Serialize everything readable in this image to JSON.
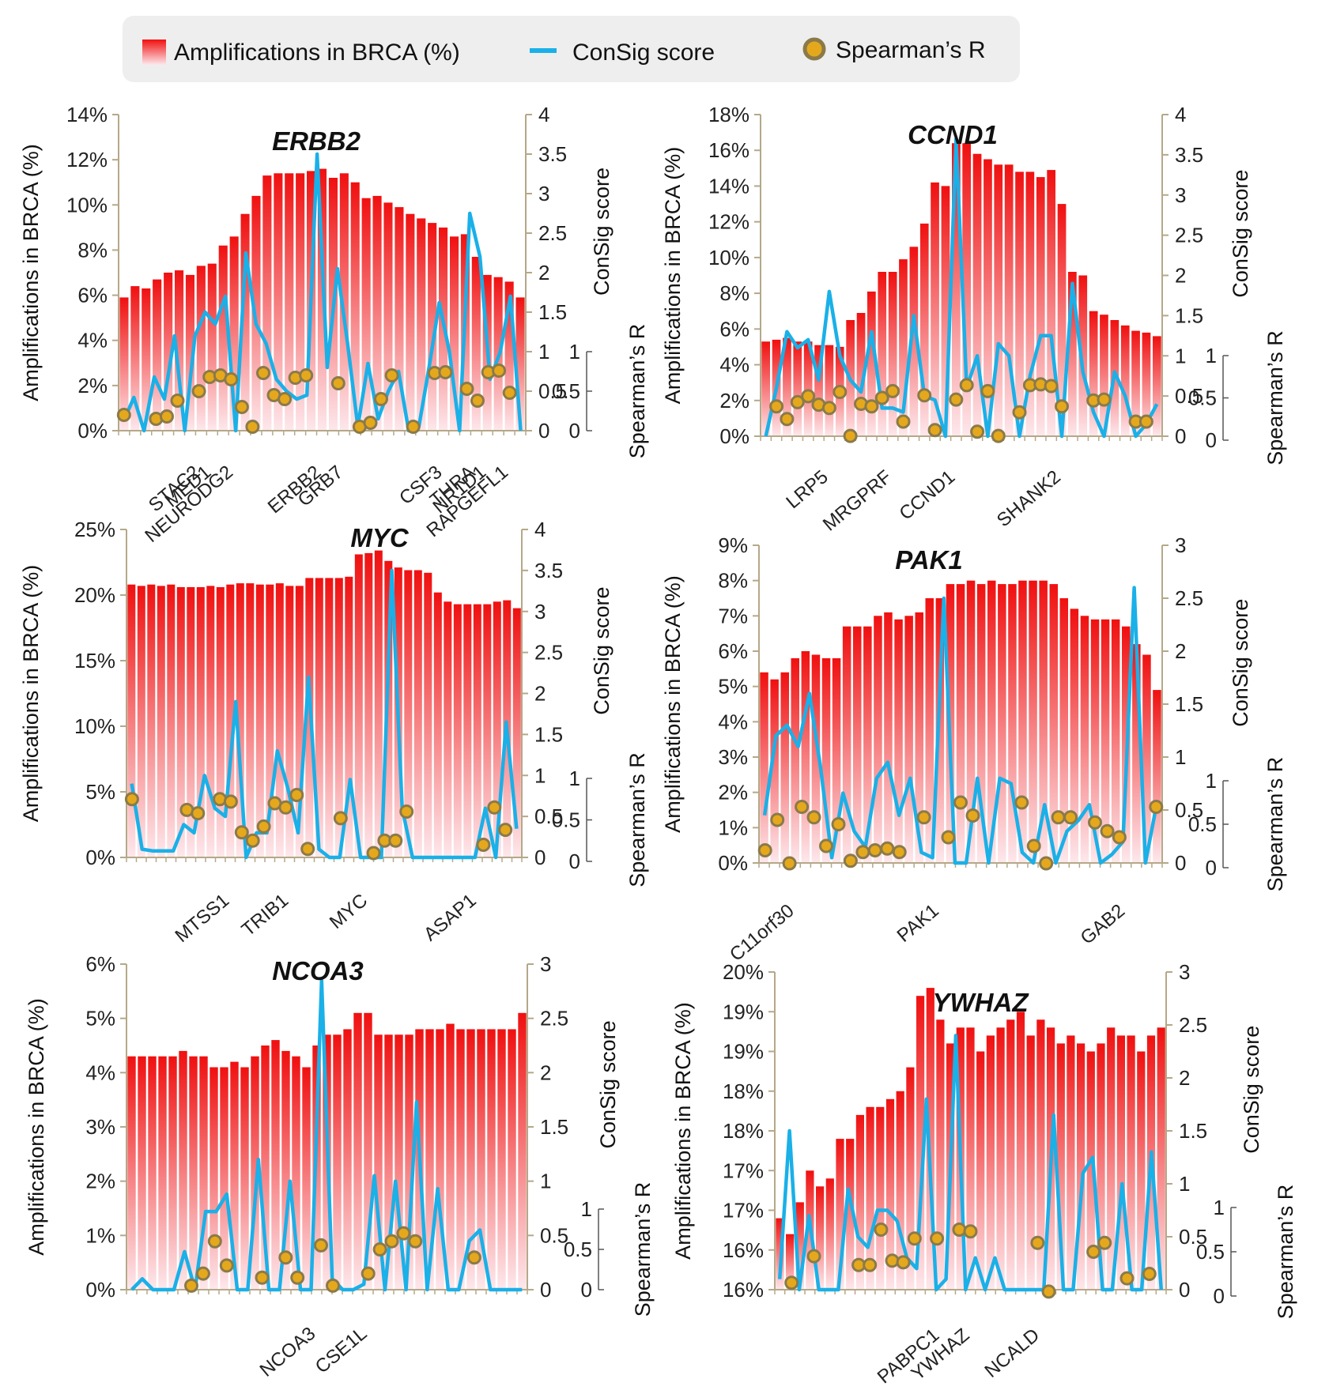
{
  "legend": {
    "amplifications_label": "Amplifications in BRCA (%)",
    "consig_label": "ConSig score",
    "spearman_label": "Spearman’s R",
    "bar_color_top": "#f01010",
    "bar_color_bottom": "#fde8ec",
    "line_color": "#1ab0e8",
    "dot_fill": "#e5a81c",
    "dot_stroke": "#8a7a4a",
    "axis_color": "#b5a888",
    "background": "#eeeeee"
  },
  "chart_data": [
    {
      "type": "bar",
      "title": "ERBB2",
      "ylabel": "Amplifications in BRCA (%)",
      "y2label": "ConSig score",
      "y3label": "Spearman’s R",
      "ylim": [
        0,
        14
      ],
      "yticks": [
        0,
        2,
        4,
        6,
        8,
        10,
        12,
        14
      ],
      "ytick_labels": [
        "0%",
        "2%",
        "4%",
        "6%",
        "8%",
        "10%",
        "12%",
        "14%"
      ],
      "y2lim": [
        0,
        4
      ],
      "y2ticks": [
        0,
        0.5,
        1,
        1.5,
        2,
        2.5,
        3,
        3.5,
        4
      ],
      "y2tick_labels": [
        "0",
        "0.5",
        "1",
        "1.5",
        "2",
        "2.5",
        "3",
        "3.5",
        "4"
      ],
      "y3lim": [
        0,
        1
      ],
      "y3ticks": [
        0,
        0.5,
        1
      ],
      "y3tick_labels": [
        "0",
        "0.5",
        "1"
      ],
      "gene_labels": [
        {
          "label": "STAC2",
          "index": 7
        },
        {
          "label": "MED1",
          "index": 8
        },
        {
          "label": "NEURODG2",
          "index": 10
        },
        {
          "label": "ERBB2",
          "index": 18
        },
        {
          "label": "GRB7",
          "index": 20
        },
        {
          "label": "CSF3",
          "index": 29
        },
        {
          "label": "THRA",
          "index": 32
        },
        {
          "label": "NR1D1",
          "index": 33
        },
        {
          "label": "RAPGEFL1",
          "index": 35
        }
      ],
      "bars": [
        5.9,
        6.4,
        6.3,
        6.7,
        7.0,
        7.1,
        6.9,
        7.3,
        7.4,
        8.2,
        8.6,
        9.6,
        10.4,
        11.3,
        11.4,
        11.4,
        11.4,
        11.5,
        11.6,
        11.2,
        11.4,
        11.0,
        10.3,
        10.4,
        10.1,
        9.9,
        9.6,
        9.4,
        9.2,
        9.0,
        8.6,
        8.7,
        7.7,
        6.9,
        6.8,
        6.6,
        5.9
      ],
      "consig": [
        0.12,
        0.42,
        0.0,
        0.68,
        0.4,
        1.2,
        0.0,
        1.2,
        1.5,
        1.35,
        1.7,
        0.0,
        2.25,
        1.35,
        1.1,
        0.65,
        0.5,
        0.4,
        0.45,
        3.5,
        0.8,
        2.05,
        1.1,
        0.05,
        0.85,
        0.15,
        0.5,
        0.75,
        0.0,
        0.05,
        0.8,
        1.62,
        1.0,
        0.0,
        2.75,
        2.2,
        0.65,
        1.0,
        1.7,
        0.0
      ],
      "spearman": [
        0.2,
        null,
        null,
        0.15,
        0.18,
        0.38,
        null,
        0.5,
        0.68,
        0.7,
        0.65,
        0.3,
        0.05,
        0.73,
        0.45,
        0.4,
        0.67,
        0.7,
        null,
        null,
        0.6,
        null,
        0.05,
        0.1,
        0.4,
        0.7,
        null,
        0.05,
        null,
        0.73,
        0.74,
        null,
        0.53,
        0.38,
        0.74,
        0.76,
        0.48,
        null
      ]
    },
    {
      "type": "bar",
      "title": "CCND1",
      "ylabel": "Amplifications in BRCA (%)",
      "y2label": "ConSig score",
      "y3label": "Spearman’s R",
      "ylim": [
        0,
        18
      ],
      "yticks": [
        0,
        2,
        4,
        6,
        8,
        10,
        12,
        14,
        16,
        18
      ],
      "ytick_labels": [
        "0%",
        "2%",
        "4%",
        "6%",
        "8%",
        "10%",
        "12%",
        "14%",
        "16%",
        "18%"
      ],
      "y2lim": [
        0,
        4
      ],
      "y2ticks": [
        0,
        0.5,
        1,
        1.5,
        2,
        2.5,
        3,
        3.5,
        4
      ],
      "y2tick_labels": [
        "0",
        "0.5",
        "1",
        "1.5",
        "2",
        "2.5",
        "3",
        "3.5",
        "4"
      ],
      "y3lim": [
        0,
        1
      ],
      "y3ticks": [
        0,
        0.5,
        1
      ],
      "y3tick_labels": [
        "0",
        "0.5",
        "1"
      ],
      "gene_labels": [
        {
          "label": "LRP5",
          "index": 6
        },
        {
          "label": "MRGPRF",
          "index": 12
        },
        {
          "label": "CCND1",
          "index": 18
        },
        {
          "label": "SHANK2",
          "index": 28
        }
      ],
      "bars": [
        5.3,
        5.4,
        5.5,
        5.3,
        5.3,
        5.1,
        5.1,
        5.0,
        6.5,
        6.9,
        8.1,
        9.2,
        9.2,
        9.9,
        10.6,
        11.9,
        14.2,
        14.0,
        16.4,
        16.4,
        15.8,
        15.5,
        15.2,
        15.2,
        14.8,
        14.8,
        14.5,
        14.9,
        13.0,
        9.2,
        9.0,
        7.0,
        6.8,
        6.5,
        6.2,
        5.9,
        5.8,
        5.6
      ],
      "consig": [
        0.0,
        0.6,
        1.3,
        1.1,
        1.2,
        0.7,
        1.8,
        1.0,
        0.7,
        0.55,
        1.3,
        0.35,
        0.35,
        0.3,
        1.5,
        0.5,
        0.45,
        0.0,
        3.7,
        0.6,
        1.0,
        0.0,
        1.15,
        1.0,
        0.0,
        0.75,
        1.25,
        1.25,
        0.0,
        1.9,
        0.8,
        0.3,
        0.0,
        0.8,
        0.5,
        0.0,
        0.15,
        0.4
      ],
      "spearman": [
        null,
        0.4,
        0.25,
        0.45,
        0.52,
        0.42,
        0.38,
        0.57,
        0.05,
        0.43,
        0.4,
        0.5,
        0.58,
        0.22,
        null,
        0.53,
        0.12,
        null,
        0.48,
        0.65,
        0.1,
        0.58,
        0.05,
        null,
        0.33,
        0.65,
        0.66,
        0.64,
        0.4,
        null,
        null,
        0.47,
        0.48,
        null,
        null,
        0.22,
        0.22,
        null
      ]
    },
    {
      "type": "bar",
      "title": "MYC",
      "ylabel": "Amplifications in BRCA (%)",
      "y2label": "ConSig score",
      "y3label": "Spearman’s R",
      "ylim": [
        0,
        25
      ],
      "yticks": [
        0,
        5,
        10,
        15,
        20,
        25
      ],
      "ytick_labels": [
        "0%",
        "5%",
        "10%",
        "15%",
        "20%",
        "25%"
      ],
      "y2lim": [
        0,
        4
      ],
      "y2ticks": [
        0,
        0.5,
        1,
        1.5,
        2,
        2.5,
        3,
        3.5,
        4
      ],
      "y2tick_labels": [
        "0",
        "0.5",
        "1",
        "1.5",
        "2",
        "2.5",
        "3",
        "3.5",
        "4"
      ],
      "y3lim": [
        0,
        1
      ],
      "y3ticks": [
        0,
        0.5,
        1
      ],
      "y3tick_labels": [
        "0",
        "0.5",
        "1"
      ],
      "gene_labels": [
        {
          "label": "MTSS1",
          "index": 10
        },
        {
          "label": "TRIB1",
          "index": 16
        },
        {
          "label": "MYC",
          "index": 24
        },
        {
          "label": "ASAP1",
          "index": 35
        }
      ],
      "bars": [
        20.8,
        20.7,
        20.8,
        20.7,
        20.8,
        20.6,
        20.6,
        20.6,
        20.7,
        20.6,
        20.8,
        20.9,
        20.9,
        20.8,
        20.8,
        20.9,
        20.7,
        20.7,
        21.3,
        21.3,
        21.3,
        21.3,
        21.4,
        23.1,
        23.2,
        23.4,
        22.6,
        22.1,
        21.9,
        21.9,
        21.7,
        20.2,
        19.5,
        19.3,
        19.3,
        19.3,
        19.3,
        19.5,
        19.6,
        19.0
      ],
      "consig": [
        0.9,
        0.1,
        0.08,
        0.08,
        0.08,
        0.4,
        0.3,
        1.0,
        0.6,
        0.5,
        1.9,
        0.0,
        0.3,
        0.3,
        1.3,
        0.85,
        0.3,
        2.2,
        0.1,
        0.0,
        0.0,
        0.95,
        0.0,
        0.0,
        0.0,
        3.5,
        0.6,
        0.0,
        0.0,
        0.0,
        0.0,
        0.0,
        0.0,
        0.0,
        0.6,
        0.0,
        1.65,
        0.35
      ],
      "spearman": [
        0.75,
        null,
        null,
        null,
        null,
        0.62,
        0.58,
        null,
        0.75,
        0.72,
        0.35,
        0.25,
        0.42,
        0.7,
        0.65,
        0.8,
        0.15,
        null,
        null,
        0.52,
        null,
        null,
        0.1,
        0.25,
        0.25,
        0.6,
        null,
        null,
        null,
        null,
        null,
        null,
        0.2,
        0.65,
        0.38,
        null
      ]
    },
    {
      "type": "bar",
      "title": "PAK1",
      "ylabel": "Amplifications in BRCA (%)",
      "y2label": "ConSig score",
      "y3label": "Spearman’s R",
      "ylim": [
        0,
        9
      ],
      "yticks": [
        0,
        1,
        2,
        3,
        4,
        5,
        6,
        7,
        8,
        9
      ],
      "ytick_labels": [
        "0%",
        "1%",
        "2%",
        "3%",
        "4%",
        "5%",
        "6%",
        "7%",
        "8%",
        "9%"
      ],
      "y2lim": [
        0,
        3
      ],
      "y2ticks": [
        0,
        0.5,
        1,
        1.5,
        2,
        2.5,
        3
      ],
      "y2tick_labels": [
        "0",
        "0.5",
        "1",
        "1.5",
        "2",
        "2.5",
        "3"
      ],
      "y3lim": [
        0,
        1
      ],
      "y3ticks": [
        0,
        0.5,
        1
      ],
      "y3tick_labels": [
        "0",
        "0.5",
        "1"
      ],
      "gene_labels": [
        {
          "label": "C11orf30",
          "index": 3
        },
        {
          "label": "PAK1",
          "index": 17
        },
        {
          "label": "GAB2",
          "index": 35
        }
      ],
      "bars": [
        5.4,
        5.2,
        5.4,
        5.8,
        6.0,
        5.9,
        5.8,
        5.8,
        6.7,
        6.7,
        6.7,
        7.0,
        7.1,
        6.9,
        7.0,
        7.1,
        7.5,
        7.5,
        7.9,
        7.9,
        8.0,
        7.9,
        8.0,
        7.9,
        7.9,
        8.0,
        8.0,
        8.0,
        7.9,
        7.5,
        7.2,
        7.0,
        6.9,
        6.9,
        6.9,
        6.7,
        6.2,
        5.9,
        4.9
      ],
      "consig": [
        0.45,
        1.2,
        1.3,
        1.1,
        1.6,
        0.9,
        0.05,
        0.66,
        0.3,
        0.15,
        0.8,
        0.95,
        0.45,
        0.8,
        0.1,
        0.05,
        2.5,
        0.0,
        0.0,
        0.8,
        0.0,
        0.8,
        0.75,
        0.1,
        0.0,
        0.55,
        0.0,
        0.3,
        0.4,
        0.55,
        0.0,
        0.08,
        0.2,
        2.6,
        0.0,
        0.55
      ],
      "spearman": [
        0.2,
        0.55,
        0.05,
        0.7,
        0.58,
        0.25,
        0.5,
        0.08,
        0.18,
        0.2,
        0.22,
        0.18,
        null,
        0.58,
        null,
        0.35,
        0.75,
        0.6,
        null,
        null,
        null,
        0.75,
        0.25,
        0.05,
        0.58,
        0.58,
        null,
        0.52,
        0.42,
        0.35,
        null,
        null,
        0.7
      ]
    },
    {
      "type": "bar",
      "title": "NCOA3",
      "ylabel": "Amplifications in BRCA (%)",
      "y2label": "ConSig score",
      "y3label": "Spearman’s R",
      "ylim": [
        0,
        6
      ],
      "yticks": [
        0,
        1,
        2,
        3,
        4,
        5,
        6
      ],
      "ytick_labels": [
        "0%",
        "1%",
        "2%",
        "3%",
        "4%",
        "5%",
        "6%"
      ],
      "y2lim": [
        0,
        3
      ],
      "y2ticks": [
        0,
        0.5,
        1,
        1.5,
        2,
        2.5,
        3
      ],
      "y2tick_labels": [
        "0",
        "0.5",
        "1",
        "1.5",
        "2",
        "2.5",
        "3"
      ],
      "y3lim": [
        0,
        1
      ],
      "y3ticks": [
        0,
        0.5,
        1
      ],
      "y3tick_labels": [
        "0",
        "0.5",
        "1"
      ],
      "gene_labels": [
        {
          "label": "NCOA3",
          "index": 18
        },
        {
          "label": "CSE1L",
          "index": 23
        }
      ],
      "bars": [
        4.3,
        4.3,
        4.3,
        4.3,
        4.3,
        4.4,
        4.3,
        4.3,
        4.1,
        4.1,
        4.2,
        4.1,
        4.3,
        4.5,
        4.6,
        4.4,
        4.3,
        4.1,
        4.5,
        4.7,
        4.7,
        4.8,
        5.1,
        5.1,
        4.7,
        4.7,
        4.7,
        4.7,
        4.8,
        4.8,
        4.8,
        4.9,
        4.8,
        4.8,
        4.8,
        4.8,
        4.8,
        4.8,
        5.1
      ],
      "consig": [
        0.0,
        0.1,
        0.0,
        0.0,
        0.0,
        0.35,
        0.0,
        0.72,
        0.72,
        0.88,
        0.0,
        0.0,
        1.2,
        0.0,
        0.0,
        1.0,
        0.0,
        0.0,
        2.85,
        0.1,
        0.0,
        0.0,
        0.05,
        1.05,
        0.0,
        1.0,
        0.0,
        1.73,
        0.0,
        0.93,
        0.0,
        0.0,
        0.45,
        0.55,
        0.0,
        0.0,
        0.0,
        0.0
      ],
      "spearman": [
        null,
        null,
        null,
        null,
        null,
        0.05,
        0.2,
        0.6,
        0.3,
        null,
        null,
        0.15,
        null,
        0.4,
        0.15,
        null,
        0.55,
        0.05,
        null,
        null,
        0.2,
        0.5,
        0.6,
        0.7,
        0.6,
        null,
        null,
        null,
        null,
        0.4,
        null,
        null,
        null,
        null
      ]
    },
    {
      "type": "bar",
      "title": "YWHAZ",
      "ylabel": "Amplifications in BRCA (%)",
      "y2label": "ConSig score",
      "y3label": "Spearman’s R",
      "ylim": [
        15.5,
        19.5
      ],
      "yticks": [
        15.5,
        16,
        16.5,
        17,
        17.5,
        18,
        18.5,
        19,
        19.5
      ],
      "ytick_labels": [
        "16%",
        "16%",
        "17%",
        "17%",
        "18%",
        "18%",
        "19%",
        "19%",
        "20%"
      ],
      "y2lim": [
        0,
        3
      ],
      "y2ticks": [
        0,
        0.5,
        1,
        1.5,
        2,
        2.5,
        3
      ],
      "y2tick_labels": [
        "0",
        "0.5",
        "1",
        "1.5",
        "2",
        "2.5",
        "3"
      ],
      "y3lim": [
        0,
        1
      ],
      "y3ticks": [
        0,
        0.5,
        1
      ],
      "y3tick_labels": [
        "0",
        "0.5",
        "1"
      ],
      "gene_labels": [
        {
          "label": "PABPC1",
          "index": 16
        },
        {
          "label": "YWHAZ",
          "index": 19
        },
        {
          "label": "NCALD",
          "index": 26
        }
      ],
      "bars": [
        16.4,
        16.2,
        16.6,
        17.0,
        16.8,
        16.9,
        17.4,
        17.4,
        17.7,
        17.8,
        17.8,
        17.9,
        18.0,
        18.3,
        19.2,
        19.3,
        18.9,
        18.6,
        18.8,
        18.8,
        18.5,
        18.7,
        18.8,
        18.9,
        19.0,
        18.7,
        18.9,
        18.8,
        18.6,
        18.7,
        18.6,
        18.5,
        18.6,
        18.8,
        18.7,
        18.7,
        18.5,
        18.7,
        18.8
      ],
      "consig": [
        0.1,
        1.5,
        0.0,
        0.7,
        0.0,
        0.0,
        0.0,
        0.95,
        0.5,
        0.4,
        0.75,
        0.75,
        0.65,
        0.3,
        0.2,
        1.8,
        0.0,
        0.1,
        2.4,
        0.0,
        0.3,
        0.0,
        0.3,
        0.0,
        0.0,
        0.0,
        0.0,
        0.0,
        1.65,
        0.0,
        0.0,
        1.1,
        1.25,
        0.0,
        0.0,
        1.0,
        0.0,
        0.0,
        1.3,
        0.0
      ],
      "spearman": [
        null,
        0.15,
        null,
        0.45,
        null,
        null,
        null,
        0.35,
        0.35,
        0.75,
        0.4,
        0.38,
        0.65,
        null,
        0.65,
        null,
        0.75,
        0.73,
        null,
        null,
        null,
        null,
        null,
        0.6,
        0.05,
        null,
        null,
        null,
        0.5,
        0.6,
        null,
        0.2,
        null,
        0.25,
        null
      ]
    }
  ]
}
